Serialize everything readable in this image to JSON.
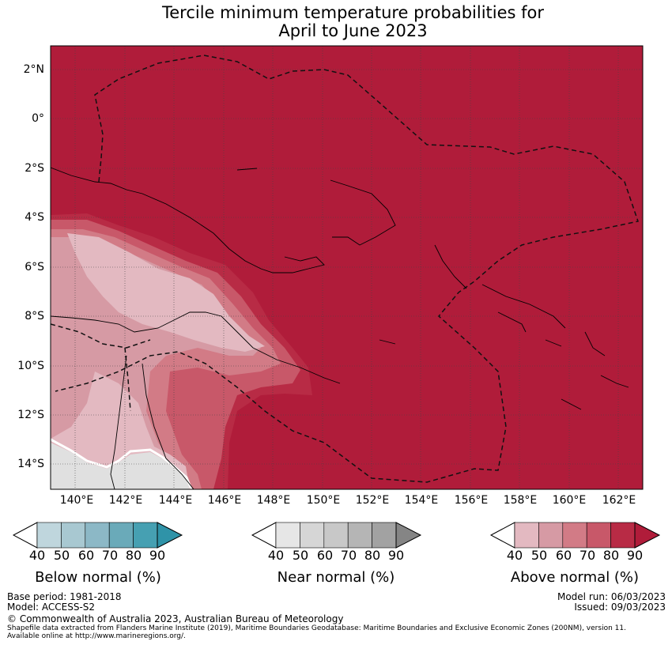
{
  "title": {
    "line1": "Tercile minimum temperature probabilities for",
    "line2": "April to June 2023"
  },
  "map": {
    "lat_labels": [
      "2°N",
      "0°",
      "2°S",
      "4°S",
      "6°S",
      "8°S",
      "10°S",
      "12°S",
      "14°S"
    ],
    "lon_labels": [
      "140°E",
      "142°E",
      "144°E",
      "146°E",
      "148°E",
      "150°E",
      "152°E",
      "154°E",
      "156°E",
      "158°E",
      "160°E",
      "162°E"
    ],
    "lon_range": [
      139,
      163
    ],
    "lat_range": [
      -15,
      3
    ],
    "dominant_category": "Above normal",
    "dominant_probability_percent": 90
  },
  "legends": {
    "below": {
      "label": "Below normal (%)",
      "ticks": [
        "40",
        "50",
        "60",
        "70",
        "80",
        "90"
      ],
      "colors": [
        "#bfd6dd",
        "#a8c8d1",
        "#8cb8c6",
        "#6aaab9",
        "#46a0b2",
        "#2f93a8"
      ]
    },
    "near": {
      "label": "Near normal (%)",
      "ticks": [
        "40",
        "50",
        "60",
        "70",
        "80",
        "90"
      ],
      "colors": [
        "#e6e6e6",
        "#d6d6d6",
        "#c8c8c8",
        "#b5b5b5",
        "#a2a2a2",
        "#858585"
      ]
    },
    "above": {
      "label": "Above normal (%)",
      "ticks": [
        "40",
        "50",
        "60",
        "70",
        "80",
        "90"
      ],
      "colors": [
        "#e3b9c1",
        "#d69aa4",
        "#d27b86",
        "#c85869",
        "#b82b45",
        "#b01c3a"
      ]
    }
  },
  "footer": {
    "base_period": "Base period: 1981-2018",
    "model": "Model: ACCESS-S2",
    "model_run": "Model run: 06/03/2023",
    "issued": "Issued: 09/03/2023",
    "copyright": "© Commonwealth of Australia 2023, Australian Bureau of Meteorology",
    "shapefile_line1": "Shapefile data extracted from Flanders Marine Institute (2019), Maritime Boundaries Geodatabase: Maritime Boundaries and Exclusive Economic Zones (200NM), version 11.",
    "shapefile_line2": "Available online at http://www.marineregions.org/."
  }
}
